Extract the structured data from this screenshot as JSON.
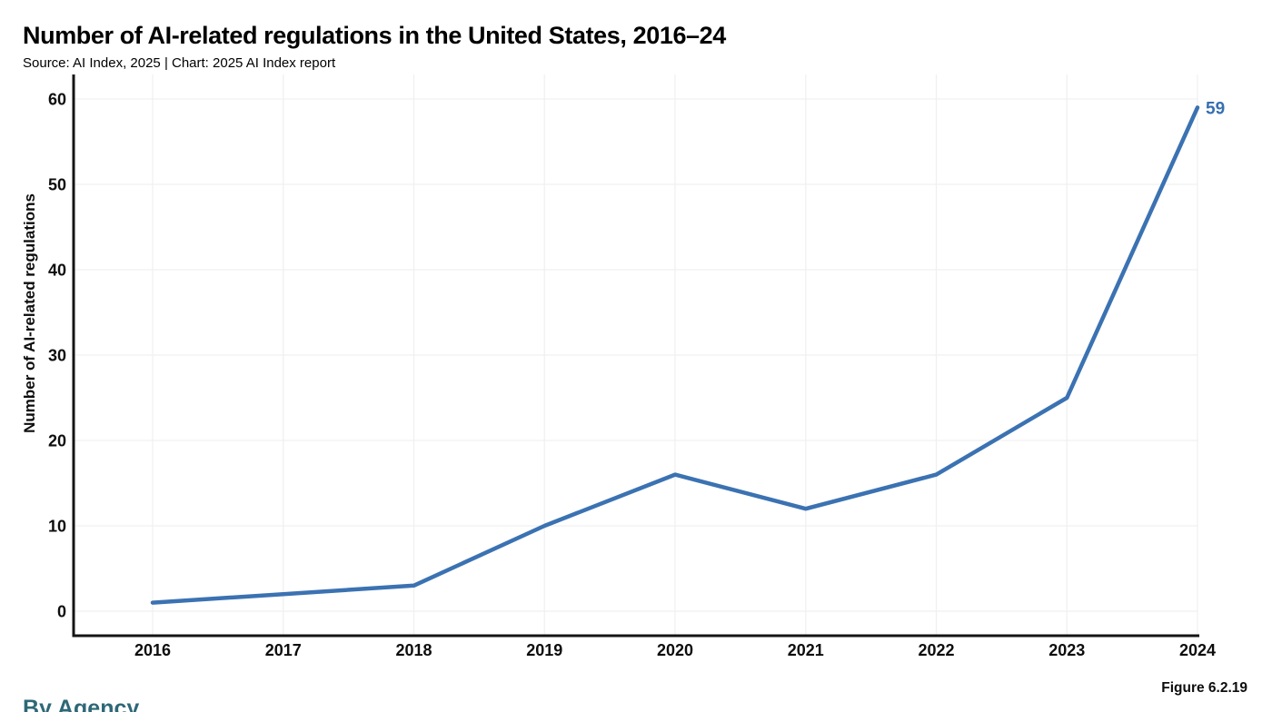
{
  "header": {
    "title": "Number of AI-related regulations in the United States, 2016–24",
    "source": "Source: AI Index, 2025 | Chart: 2025 AI Index report"
  },
  "footer": {
    "figure_label": "Figure 6.2.19",
    "next_section_heading": "By Agency"
  },
  "colors": {
    "line": "#3b72b2",
    "end_label": "#376fb0",
    "axis": "#141414",
    "tick_text": "#0d0d0d",
    "gridline": "#f0f0f0",
    "section_heading": "#2e6877"
  },
  "chart_data": {
    "type": "line",
    "title": "Number of AI-related regulations in the United States, 2016–24",
    "subtitle": "Source: AI Index, 2025 | Chart: 2025 AI Index report",
    "categories": [
      "2016",
      "2017",
      "2018",
      "2019",
      "2020",
      "2021",
      "2022",
      "2023",
      "2024"
    ],
    "series": [
      {
        "name": "Number of AI-related regulations",
        "values": [
          1,
          2,
          3,
          10,
          16,
          12,
          16,
          25,
          59
        ]
      }
    ],
    "end_label": "59",
    "xlabel": "",
    "ylabel": "Number of AI-related regulations",
    "ylim": [
      0,
      60
    ],
    "yticks": [
      0,
      10,
      20,
      30,
      40,
      50,
      60
    ],
    "grid": true,
    "legend_position": "none",
    "annotation": "Figure 6.2.19"
  }
}
